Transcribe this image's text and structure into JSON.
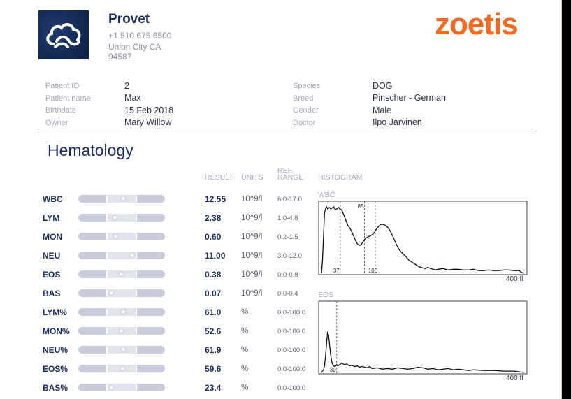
{
  "clinic": {
    "name": "Provet",
    "phone": "+1 510 675 6500",
    "city": "Union City CA",
    "zip": "94587",
    "logo_icon": "cloud-logo-icon"
  },
  "brand": {
    "name": "zoetis",
    "color": "#f26a21"
  },
  "patient_left": [
    {
      "label": "Patient ID",
      "value": "2"
    },
    {
      "label": "Patient name",
      "value": "Max"
    },
    {
      "label": "Birthdate",
      "value": "15 Feb 2018"
    },
    {
      "label": "Owner",
      "value": "Mary Willow"
    }
  ],
  "patient_right": [
    {
      "label": "Species",
      "value": "DOG"
    },
    {
      "label": "Breed",
      "value": "Pinscher - German"
    },
    {
      "label": "Gender",
      "value": "Male"
    },
    {
      "label": "Doctor",
      "value": "Ilpo Järvinen"
    }
  ],
  "section_title": "Hematology",
  "columns": {
    "result": "RESULT",
    "units": "UNITS",
    "ref_line1": "REF.",
    "ref_line2": "RANGE",
    "histogram": "HISTOGRAM"
  },
  "rows": [
    {
      "name": "WBC",
      "result": "12.55",
      "unit": "10^9/l",
      "ref": "6.0-17.0",
      "level": 0.52
    },
    {
      "name": "LYM",
      "result": "2.38",
      "unit": "10^9/l",
      "ref": "1.0-4.8",
      "level": 0.42
    },
    {
      "name": "MON",
      "result": "0.60",
      "unit": "10^9/l",
      "ref": "0.2-1.5",
      "level": 0.43
    },
    {
      "name": "NEU",
      "result": "11.00",
      "unit": "10^9/l",
      "ref": "3.0-12.0",
      "level": 0.62
    },
    {
      "name": "EOS",
      "result": "0.38",
      "unit": "10^9/l",
      "ref": "0.0-0.8",
      "level": 0.49
    },
    {
      "name": "BAS",
      "result": "0.07",
      "unit": "10^9/l",
      "ref": "0.0-0.4",
      "level": 0.38
    },
    {
      "name": "LYM%",
      "result": "61.0",
      "unit": "%",
      "ref": "0.0-100.0",
      "level": 0.52
    },
    {
      "name": "MON%",
      "result": "52.6",
      "unit": "%",
      "ref": "0.0-100.0",
      "level": 0.49
    },
    {
      "name": "NEU%",
      "result": "61.9",
      "unit": "%",
      "ref": "0.0-100.0",
      "level": 0.52
    },
    {
      "name": "EOS%",
      "result": "59.6",
      "unit": "%",
      "ref": "0.0-100.0",
      "level": 0.51
    },
    {
      "name": "BAS%",
      "result": "23.4",
      "unit": "%",
      "ref": "0.0-100.0",
      "level": 0.38
    }
  ],
  "chart_data": [
    {
      "type": "line",
      "title": "WBC",
      "x_end_label": "400 fl",
      "xlim": [
        0,
        400
      ],
      "markers": [
        {
          "x": 37,
          "label": "37"
        },
        {
          "x": 85,
          "label": "85"
        },
        {
          "x": 106,
          "label": "106"
        }
      ],
      "x": [
        0,
        2,
        4,
        6,
        8,
        10,
        12,
        14,
        16,
        18,
        20,
        22,
        24,
        26,
        28,
        30,
        32,
        34,
        36,
        38,
        40,
        44,
        48,
        52,
        56,
        60,
        64,
        68,
        72,
        76,
        80,
        84,
        88,
        92,
        96,
        100,
        104,
        108,
        112,
        116,
        120,
        124,
        128,
        132,
        136,
        140,
        144,
        148,
        152,
        156,
        160,
        164,
        168,
        172,
        176,
        180,
        184,
        188,
        192,
        196,
        200,
        205,
        210,
        215,
        220,
        225,
        230,
        240,
        250,
        260,
        270,
        280,
        290,
        300,
        310,
        320,
        330,
        340,
        350,
        360,
        370,
        380,
        390,
        395,
        400
      ],
      "y": [
        0,
        0.2,
        0.55,
        0.9,
        0.98,
        1.0,
        0.97,
        0.98,
        0.99,
        0.97,
        0.98,
        0.99,
        1.0,
        0.97,
        0.96,
        0.97,
        0.98,
        0.99,
        0.97,
        0.96,
        0.95,
        0.88,
        0.8,
        0.72,
        0.68,
        0.62,
        0.55,
        0.48,
        0.43,
        0.42,
        0.45,
        0.5,
        0.53,
        0.55,
        0.56,
        0.58,
        0.61,
        0.66,
        0.7,
        0.73,
        0.74,
        0.73,
        0.71,
        0.68,
        0.63,
        0.57,
        0.5,
        0.43,
        0.37,
        0.33,
        0.3,
        0.27,
        0.24,
        0.2,
        0.18,
        0.16,
        0.14,
        0.12,
        0.1,
        0.09,
        0.08,
        0.07,
        0.09,
        0.07,
        0.06,
        0.05,
        0.06,
        0.07,
        0.05,
        0.06,
        0.06,
        0.05,
        0.05,
        0.06,
        0.04,
        0.04,
        0.05,
        0.04,
        0.04,
        0.05,
        0.05,
        0.04,
        0.04,
        0.01,
        0
      ]
    },
    {
      "type": "line",
      "title": "EOS",
      "x_end_label": "400 fl",
      "xlim": [
        0,
        400
      ],
      "markers": [
        {
          "x": 30,
          "label": "30"
        }
      ],
      "x": [
        0,
        2,
        4,
        6,
        8,
        10,
        12,
        14,
        16,
        18,
        20,
        22,
        24,
        26,
        28,
        30,
        32,
        34,
        36,
        38,
        40,
        45,
        50,
        55,
        60,
        65,
        70,
        75,
        80,
        85,
        90,
        95,
        100,
        110,
        120,
        130,
        140,
        150,
        160,
        170,
        180,
        190,
        200,
        210,
        220,
        230,
        240,
        250,
        260,
        270,
        280,
        290,
        300,
        320,
        340,
        360,
        380,
        400
      ],
      "y": [
        0,
        0.02,
        0.04,
        0.1,
        0.25,
        0.45,
        0.62,
        0.56,
        0.42,
        0.28,
        0.17,
        0.12,
        0.1,
        0.09,
        0.1,
        0.12,
        0.1,
        0.11,
        0.12,
        0.13,
        0.14,
        0.12,
        0.13,
        0.1,
        0.11,
        0.09,
        0.1,
        0.08,
        0.09,
        0.08,
        0.07,
        0.09,
        0.06,
        0.07,
        0.05,
        0.06,
        0.05,
        0.07,
        0.06,
        0.05,
        0.06,
        0.08,
        0.07,
        0.05,
        0.06,
        0.04,
        0.05,
        0.06,
        0.04,
        0.05,
        0.04,
        0.03,
        0.04,
        0.03,
        0.03,
        0.02,
        0.02,
        0
      ]
    }
  ]
}
